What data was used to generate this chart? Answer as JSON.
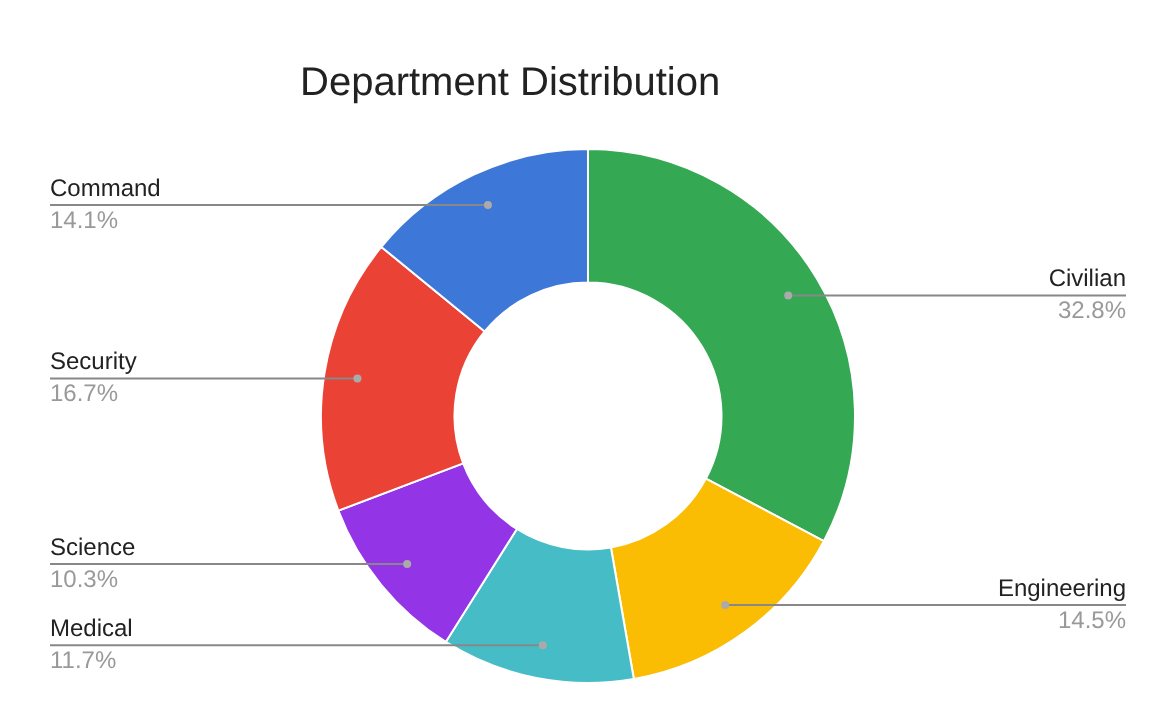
{
  "chart_data": {
    "type": "donut",
    "title": "Department Distribution",
    "categories": [
      "Civilian",
      "Engineering",
      "Medical",
      "Science",
      "Security",
      "Command"
    ],
    "values": [
      32.8,
      14.5,
      11.7,
      10.3,
      16.7,
      14.1
    ],
    "value_labels": [
      "32.8%",
      "14.5%",
      "11.7%",
      "10.3%",
      "16.7%",
      "14.1%"
    ],
    "colors": [
      "#34a853",
      "#fbbc04",
      "#46bdc6",
      "#9334e6",
      "#ea4335",
      "#3d78d8"
    ],
    "legend": false
  }
}
